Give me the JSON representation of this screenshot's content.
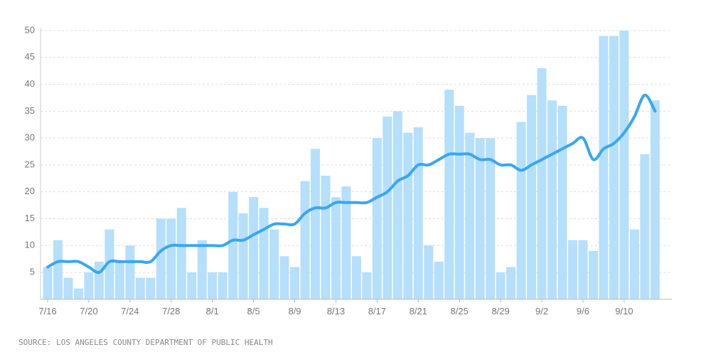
{
  "chart_data": {
    "type": "bar",
    "source": "SOURCE: LOS ANGELES COUNTY DEPARTMENT OF PUBLIC HEALTH",
    "categories": [
      "7/16",
      null,
      null,
      null,
      "7/20",
      null,
      null,
      null,
      "7/24",
      null,
      null,
      null,
      "7/28",
      null,
      null,
      null,
      "8/1",
      null,
      null,
      null,
      "8/5",
      null,
      null,
      null,
      "8/9",
      null,
      null,
      null,
      "8/13",
      null,
      null,
      null,
      "8/17",
      null,
      null,
      null,
      "8/21",
      null,
      null,
      null,
      "8/25",
      null,
      null,
      null,
      "8/29",
      null,
      null,
      null,
      "9/2",
      null,
      null,
      null,
      "9/6",
      null,
      null,
      null,
      "9/10",
      null,
      null,
      null
    ],
    "series": [
      {
        "type": "bar",
        "color": "#b5dffa",
        "values": [
          6,
          11,
          4,
          2,
          5,
          7,
          13,
          7,
          10,
          4,
          4,
          15,
          15,
          17,
          5,
          11,
          5,
          5,
          20,
          16,
          19,
          17,
          13,
          8,
          6,
          22,
          28,
          23,
          19,
          21,
          8,
          5,
          30,
          34,
          35,
          31,
          32,
          10,
          7,
          39,
          36,
          31,
          30,
          30,
          5,
          6,
          33,
          38,
          43,
          37,
          36,
          11,
          11,
          9,
          49,
          49,
          50,
          13,
          27,
          37
        ]
      },
      {
        "type": "line",
        "color": "#3aa6ef",
        "values": [
          6,
          7,
          7,
          7,
          6,
          5,
          7,
          7,
          7,
          7,
          7,
          9,
          10,
          10,
          10,
          10,
          10,
          10,
          11,
          11,
          12,
          13,
          14,
          14,
          14,
          16,
          17,
          17,
          18,
          18,
          18,
          18,
          19,
          20,
          22,
          23,
          25,
          25,
          26,
          27,
          27,
          27,
          26,
          26,
          25,
          25,
          24,
          25,
          26,
          27,
          28,
          29,
          30,
          26,
          28,
          29,
          31,
          34,
          38,
          35
        ]
      }
    ],
    "ylim": [
      0,
      50
    ],
    "yticks": [
      5,
      10,
      15,
      20,
      25,
      30,
      35,
      40,
      45,
      50
    ],
    "grid": true
  }
}
